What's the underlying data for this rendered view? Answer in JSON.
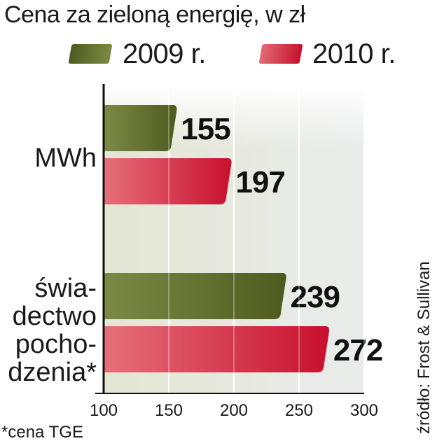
{
  "chart_data": {
    "type": "bar",
    "orientation": "horizontal",
    "title": "Cena za zieloną energię, w zł",
    "categories": [
      "MWh",
      "świadectwo pochodzenia*"
    ],
    "category_lines": [
      [
        "MWh"
      ],
      [
        "świa-",
        "dectwo",
        "pocho-",
        "dzenia*"
      ]
    ],
    "series": [
      {
        "name": "2009 r.",
        "values": [
          155,
          239
        ],
        "color": "#5e6b2a"
      },
      {
        "name": "2010 r.",
        "values": [
          197,
          272
        ],
        "color": "#d42a3a"
      }
    ],
    "xlim": [
      100,
      300
    ],
    "xticks": [
      "100",
      "150",
      "200",
      "250",
      "300"
    ],
    "data_labels": [
      "155",
      "197",
      "239",
      "272"
    ],
    "legend_position": "top",
    "grid": true
  },
  "source_note": "źródło: Frost & Sullivan",
  "footnote": "*cena TGE"
}
